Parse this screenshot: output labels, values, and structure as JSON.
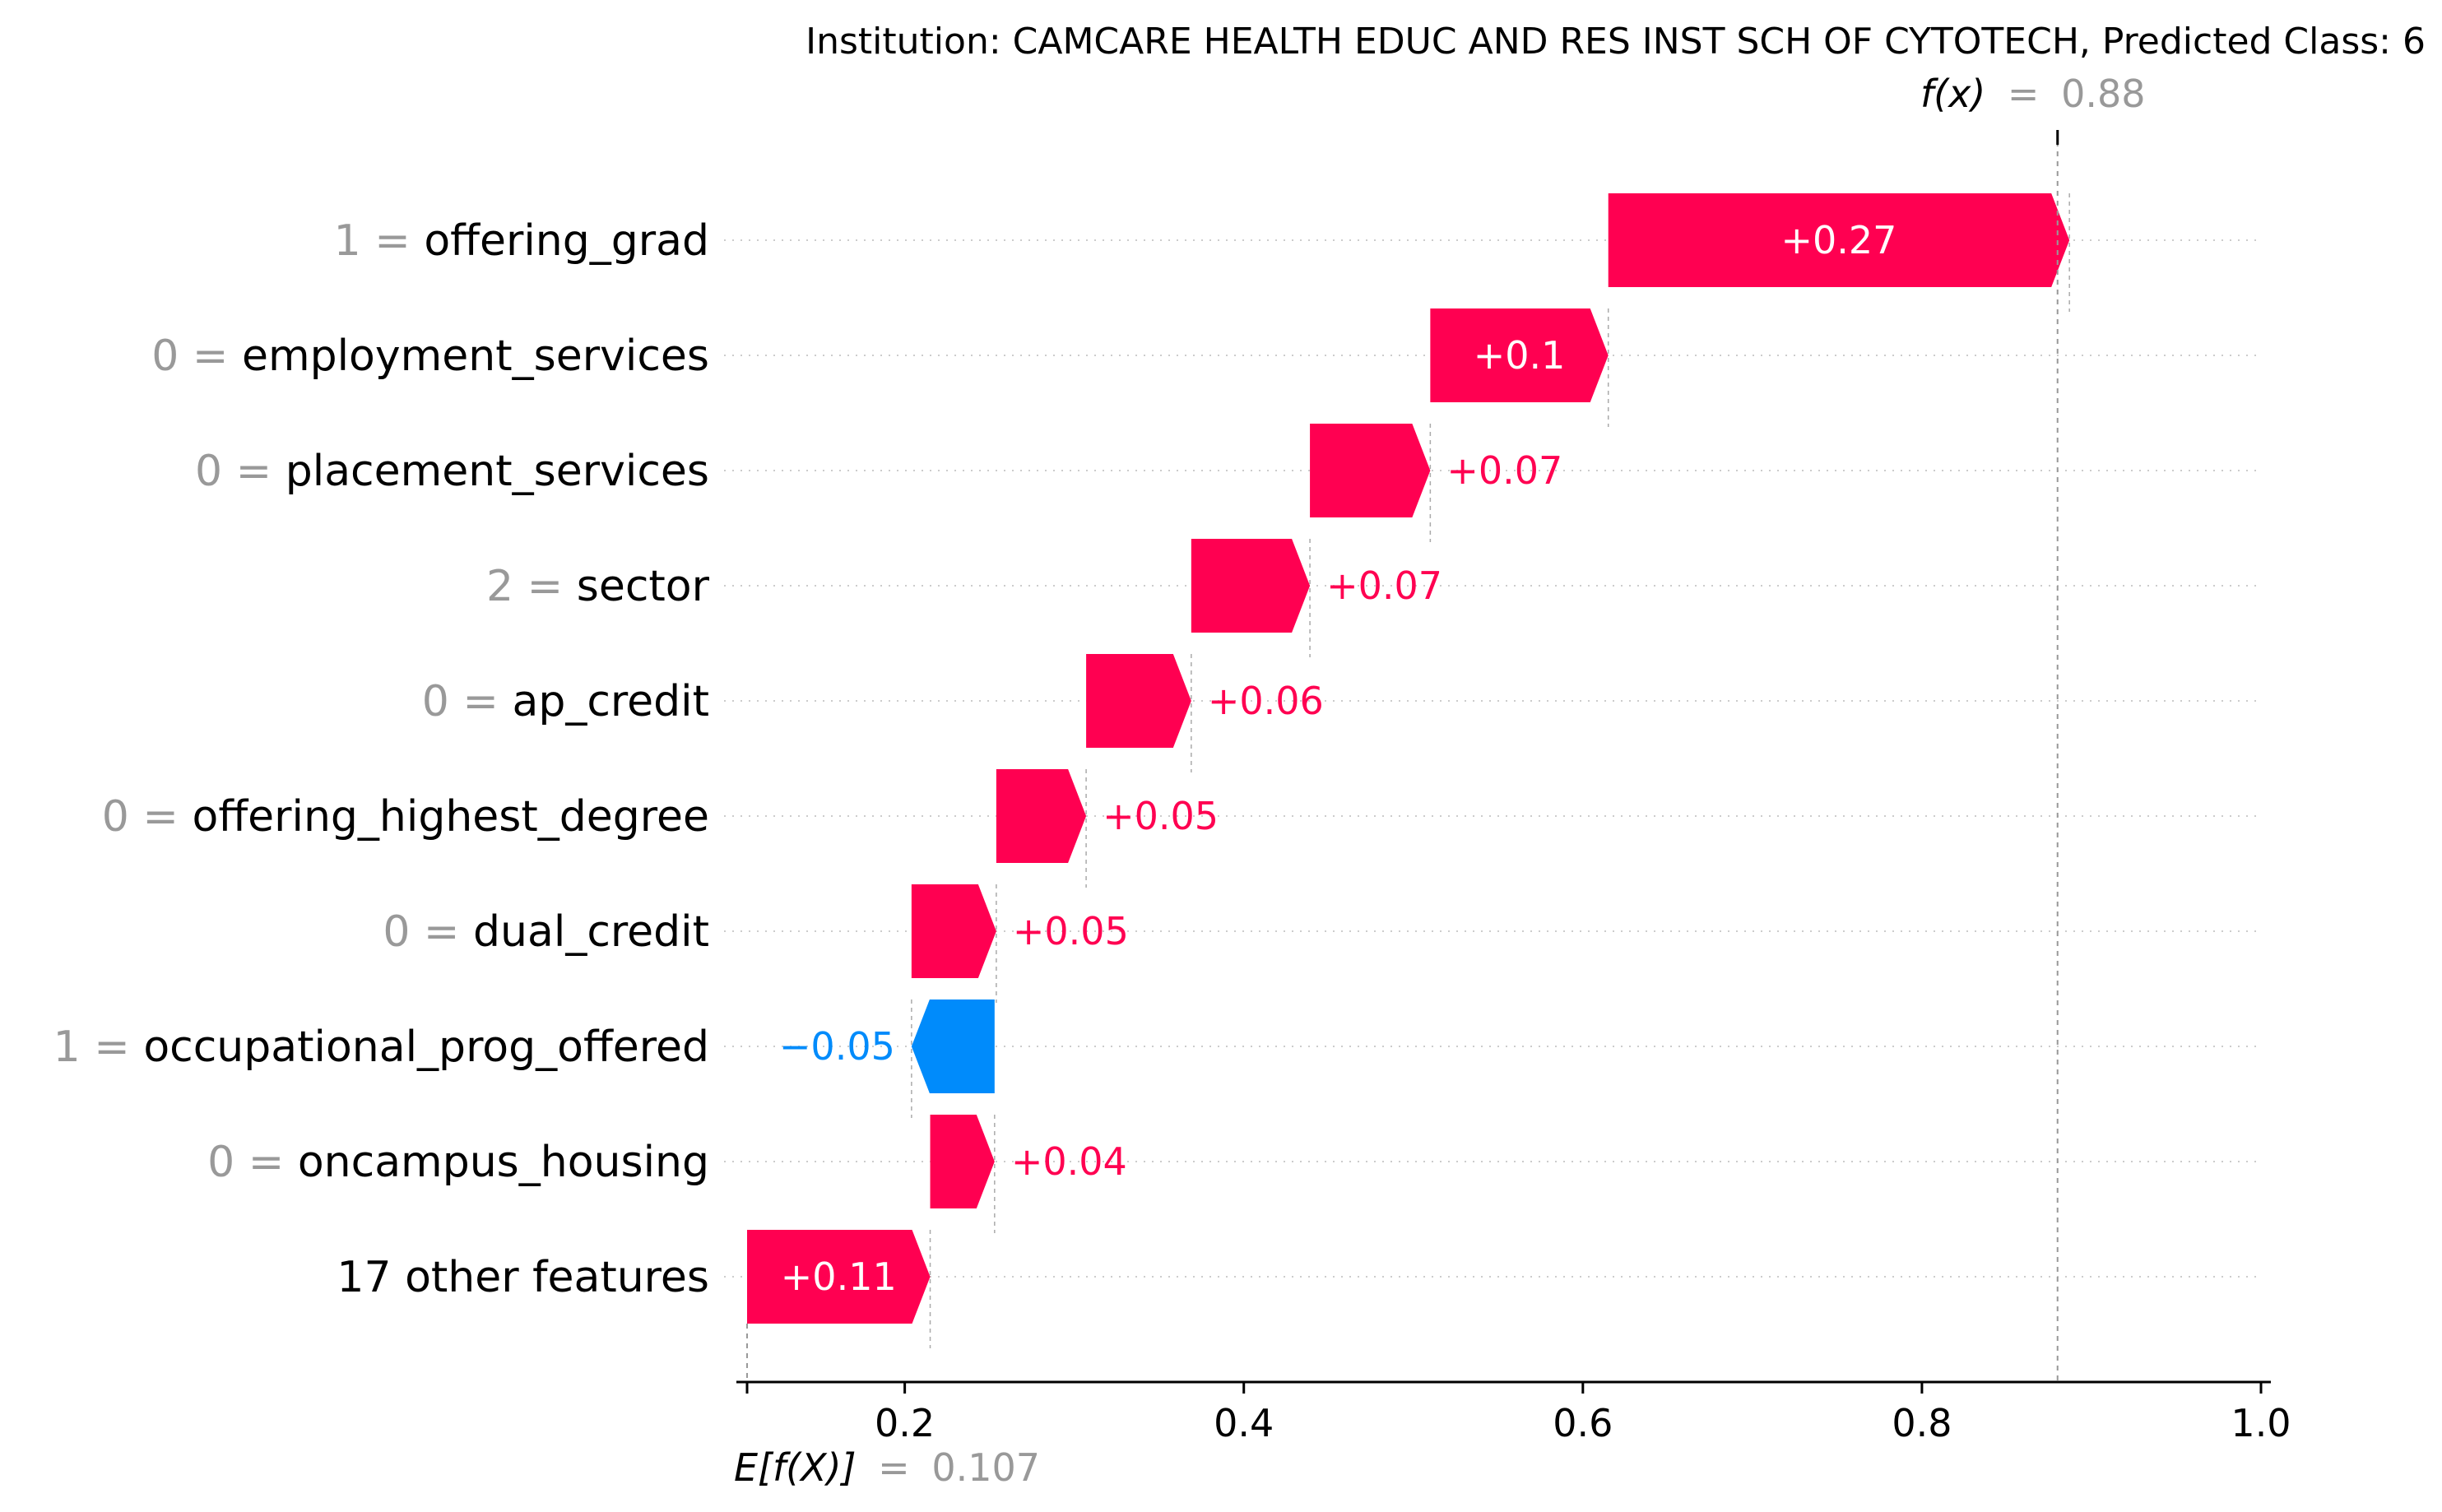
{
  "chart_data": {
    "type": "waterfall",
    "title": "Institution: CAMCARE HEALTH EDUC AND RES INST SCH OF CYTOTECH, Predicted Class: 6",
    "base_value": 0.107,
    "base_label": {
      "expr": "E[f(X)]",
      "eq": "=",
      "value_text": "0.107"
    },
    "output_value": 0.88,
    "output_label": {
      "expr": "f(x)",
      "eq": "=",
      "value_text": "0.88"
    },
    "xlim": [
      0.107,
      1.0
    ],
    "xticks": [
      0.2,
      0.4,
      0.6,
      0.8,
      1.0
    ],
    "xtick_labels": [
      "0.2",
      "0.4",
      "0.6",
      "0.8",
      "1.0"
    ],
    "features": [
      {
        "value": "1",
        "eq": " = ",
        "name": "offering_grad",
        "contribution": 0.272,
        "label": "+0.27"
      },
      {
        "value": "0",
        "eq": " = ",
        "name": "employment_services",
        "contribution": 0.105,
        "label": "+0.1"
      },
      {
        "value": "0",
        "eq": " = ",
        "name": "placement_services",
        "contribution": 0.071,
        "label": "+0.07"
      },
      {
        "value": "2",
        "eq": " = ",
        "name": "sector",
        "contribution": 0.07,
        "label": "+0.07"
      },
      {
        "value": "0",
        "eq": " = ",
        "name": "ap_credit",
        "contribution": 0.062,
        "label": "+0.06"
      },
      {
        "value": "0",
        "eq": " = ",
        "name": "offering_highest_degree",
        "contribution": 0.053,
        "label": "+0.05"
      },
      {
        "value": "0",
        "eq": " = ",
        "name": "dual_credit",
        "contribution": 0.05,
        "label": "+0.05"
      },
      {
        "value": "1",
        "eq": " = ",
        "name": "occupational_prog_offered",
        "contribution": -0.049,
        "label": "−0.05"
      },
      {
        "value": "0",
        "eq": " = ",
        "name": "oncampus_housing",
        "contribution": 0.038,
        "label": "+0.04"
      },
      {
        "value": "",
        "eq": "",
        "name": "17 other features",
        "contribution": 0.108,
        "label": "+0.11"
      }
    ],
    "colors": {
      "positive": "#ff0051",
      "negative": "#008bfb",
      "grey": "#999999",
      "grid": "#cccccc"
    }
  }
}
